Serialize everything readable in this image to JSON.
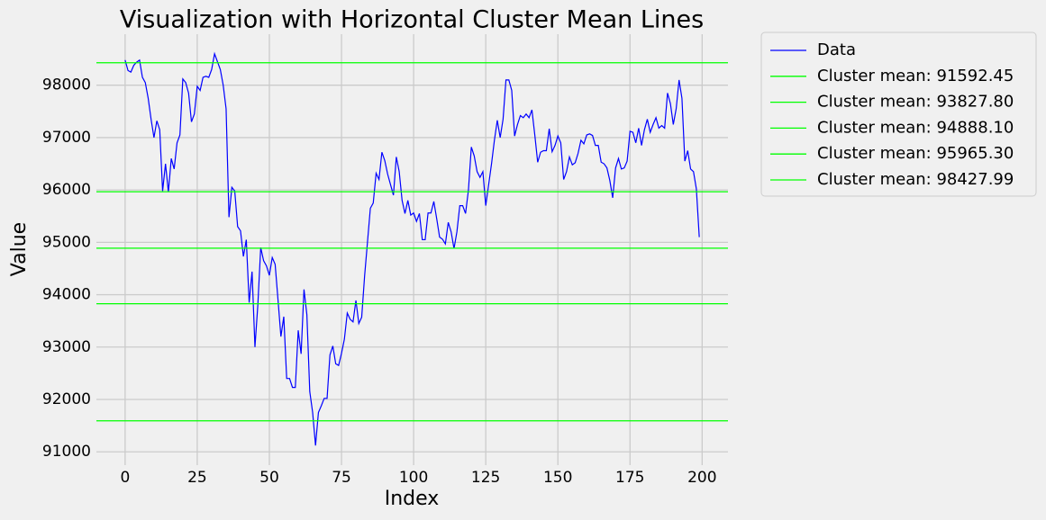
{
  "chart_data": {
    "type": "line",
    "title": "Visualization with Horizontal Cluster Mean Lines",
    "x_label": "Index",
    "y_label": "Value",
    "x": [
      0,
      1,
      2,
      3,
      4,
      5,
      6,
      7,
      8,
      9,
      10,
      11,
      12,
      13,
      14,
      15,
      16,
      17,
      18,
      19,
      20,
      21,
      22,
      23,
      24,
      25,
      26,
      27,
      28,
      29,
      30,
      31,
      32,
      33,
      34,
      35,
      36,
      37,
      38,
      39,
      40,
      41,
      42,
      43,
      44,
      45,
      46,
      47,
      48,
      49,
      50,
      51,
      52,
      53,
      54,
      55,
      56,
      57,
      58,
      59,
      60,
      61,
      62,
      63,
      64,
      65,
      66,
      67,
      68,
      69,
      70,
      71,
      72,
      73,
      74,
      75,
      76,
      77,
      78,
      79,
      80,
      81,
      82,
      83,
      84,
      85,
      86,
      87,
      88,
      89,
      90,
      91,
      92,
      93,
      94,
      95,
      96,
      97,
      98,
      99,
      100,
      101,
      102,
      103,
      104,
      105,
      106,
      107,
      108,
      109,
      110,
      111,
      112,
      113,
      114,
      115,
      116,
      117,
      118,
      119,
      120,
      121,
      122,
      123,
      124,
      125,
      126,
      127,
      128,
      129,
      130,
      131,
      132,
      133,
      134,
      135,
      136,
      137,
      138,
      139,
      140,
      141,
      142,
      143,
      144,
      145,
      146,
      147,
      148,
      149,
      150,
      151,
      152,
      153,
      154,
      155,
      156,
      157,
      158,
      159,
      160,
      161,
      162,
      163,
      164,
      165,
      166,
      167,
      168,
      169,
      170,
      171,
      172,
      173,
      174,
      175,
      176,
      177,
      178,
      179,
      180,
      181,
      182,
      183,
      184,
      185,
      186,
      187,
      188,
      189,
      190,
      191,
      192,
      193,
      194,
      195,
      196,
      197,
      198,
      199
    ],
    "series": [
      {
        "name": "Data",
        "color": "#0000ff",
        "values": [
          98480,
          98280,
          98250,
          98380,
          98440,
          98480,
          98150,
          98050,
          97750,
          97350,
          97000,
          97320,
          97150,
          95980,
          96500,
          95960,
          96600,
          96400,
          96900,
          97050,
          98120,
          98050,
          97850,
          97300,
          97450,
          97980,
          97900,
          98150,
          98170,
          98150,
          98300,
          98600,
          98450,
          98300,
          98000,
          97550,
          95480,
          96050,
          95980,
          95300,
          95220,
          94730,
          95050,
          93850,
          94440,
          93000,
          93800,
          94900,
          94650,
          94550,
          94370,
          94710,
          94580,
          93900,
          93200,
          93580,
          92400,
          92400,
          92230,
          92230,
          93320,
          92870,
          94100,
          93620,
          92150,
          91750,
          91120,
          91750,
          91880,
          92020,
          92020,
          92850,
          93020,
          92680,
          92650,
          92880,
          93150,
          93650,
          93530,
          93480,
          93890,
          93450,
          93570,
          94350,
          95000,
          95650,
          95750,
          96320,
          96200,
          96720,
          96560,
          96300,
          96100,
          95900,
          96630,
          96350,
          95800,
          95550,
          95800,
          95520,
          95560,
          95400,
          95550,
          95050,
          95050,
          95560,
          95560,
          95780,
          95450,
          95100,
          95060,
          94970,
          95380,
          95200,
          94880,
          95200,
          95700,
          95700,
          95550,
          96000,
          96820,
          96650,
          96350,
          96240,
          96350,
          95700,
          96100,
          96500,
          96950,
          97330,
          97000,
          97350,
          98100,
          98100,
          97900,
          97030,
          97250,
          97420,
          97380,
          97450,
          97380,
          97530,
          97050,
          96530,
          96720,
          96750,
          96750,
          97170,
          96730,
          96850,
          97030,
          96900,
          96200,
          96350,
          96630,
          96480,
          96520,
          96700,
          96950,
          96880,
          97050,
          97070,
          97040,
          96850,
          96850,
          96530,
          96500,
          96420,
          96180,
          95850,
          96420,
          96600,
          96400,
          96420,
          96550,
          97120,
          97100,
          96900,
          97180,
          96850,
          97150,
          97350,
          97100,
          97250,
          97380,
          97180,
          97230,
          97180,
          97850,
          97650,
          97250,
          97550,
          98100,
          97750,
          96550,
          96750,
          96400,
          96350,
          96020,
          95100
        ]
      }
    ],
    "hlines": [
      {
        "name": "Cluster mean: 91592.45",
        "value": 91592.45,
        "color": "#00ff00"
      },
      {
        "name": "Cluster mean: 93827.80",
        "value": 93827.8,
        "color": "#00ff00"
      },
      {
        "name": "Cluster mean: 94888.10",
        "value": 94888.1,
        "color": "#00ff00"
      },
      {
        "name": "Cluster mean: 95965.30",
        "value": 95965.3,
        "color": "#00ff00"
      },
      {
        "name": "Cluster mean: 98427.99",
        "value": 98427.99,
        "color": "#00ff00"
      }
    ],
    "xlim": [
      -9.95,
      208.95
    ],
    "xticks": [
      0,
      25,
      50,
      75,
      100,
      125,
      150,
      175,
      200
    ],
    "ylim": [
      90746,
      98974
    ],
    "yticks": [
      91000,
      92000,
      93000,
      94000,
      95000,
      96000,
      97000,
      98000
    ],
    "grid": true,
    "legend": "outside right"
  }
}
